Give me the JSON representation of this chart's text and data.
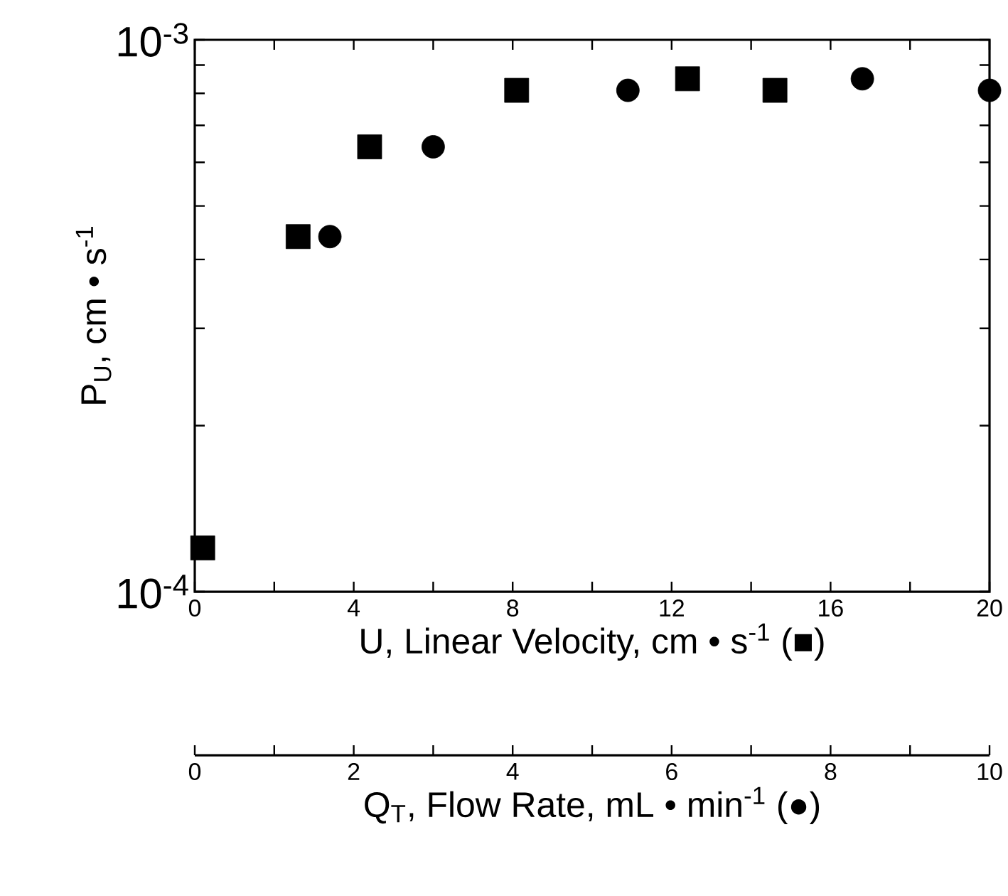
{
  "chart_data": {
    "type": "scatter",
    "xlabel": "U, Linear Velocity, cm • s$^{-1}$   (■)",
    "x2label": "Q$_{T}$, Flow Rate, mL • min$^{-1}$   (●)",
    "ylabel": "P$_{U}$, cm • s$^{-1}$",
    "xlim": [
      0,
      20
    ],
    "xticks": [
      0,
      {
        "value": 2,
        "label": null
      },
      4,
      {
        "value": 6,
        "label": null
      },
      8,
      {
        "value": 10,
        "label": null
      },
      12,
      {
        "value": 14,
        "label": null
      },
      16,
      {
        "value": 18,
        "label": null
      },
      20
    ],
    "x2lim": [
      0,
      10
    ],
    "x2ticks": [
      0,
      {
        "value": 1,
        "label": null
      },
      2,
      {
        "value": 3,
        "label": null
      },
      4,
      {
        "value": 5,
        "label": null
      },
      6,
      {
        "value": 7,
        "label": null
      },
      8,
      {
        "value": 9,
        "label": null
      },
      10
    ],
    "ylim": [
      0.0001,
      0.001
    ],
    "yticks": [
      {
        "value": 0.0001,
        "label": "10$^{-4}$"
      },
      {
        "value": 0.0002,
        "label": null
      },
      {
        "value": 0.0003,
        "label": null
      },
      {
        "value": 0.0004,
        "label": null
      },
      {
        "value": 0.0005,
        "label": null
      },
      {
        "value": 0.0006,
        "label": null
      },
      {
        "value": 0.0007,
        "label": null
      },
      {
        "value": 0.0008,
        "label": null
      },
      {
        "value": 0.0009,
        "label": null
      },
      {
        "value": 0.001,
        "label": "10$^{-3}$"
      }
    ],
    "log": "y",
    "series": [
      {
        "color": "#000000",
        "marker": "square",
        "x": [
          0.2,
          2.6,
          4.4,
          8.1,
          12.4,
          14.6
        ],
        "values": [
          0.00012,
          0.00044,
          0.00064,
          0.00081,
          0.00085,
          0.00081
        ]
      },
      {
        "color": "#000000",
        "marker": "circle",
        "axis": "x2",
        "x": [
          1.7,
          3.0,
          5.45,
          8.4,
          10
        ],
        "values": [
          0.00044,
          0.00064,
          0.00081,
          0.00085,
          0.00081
        ]
      }
    ]
  }
}
